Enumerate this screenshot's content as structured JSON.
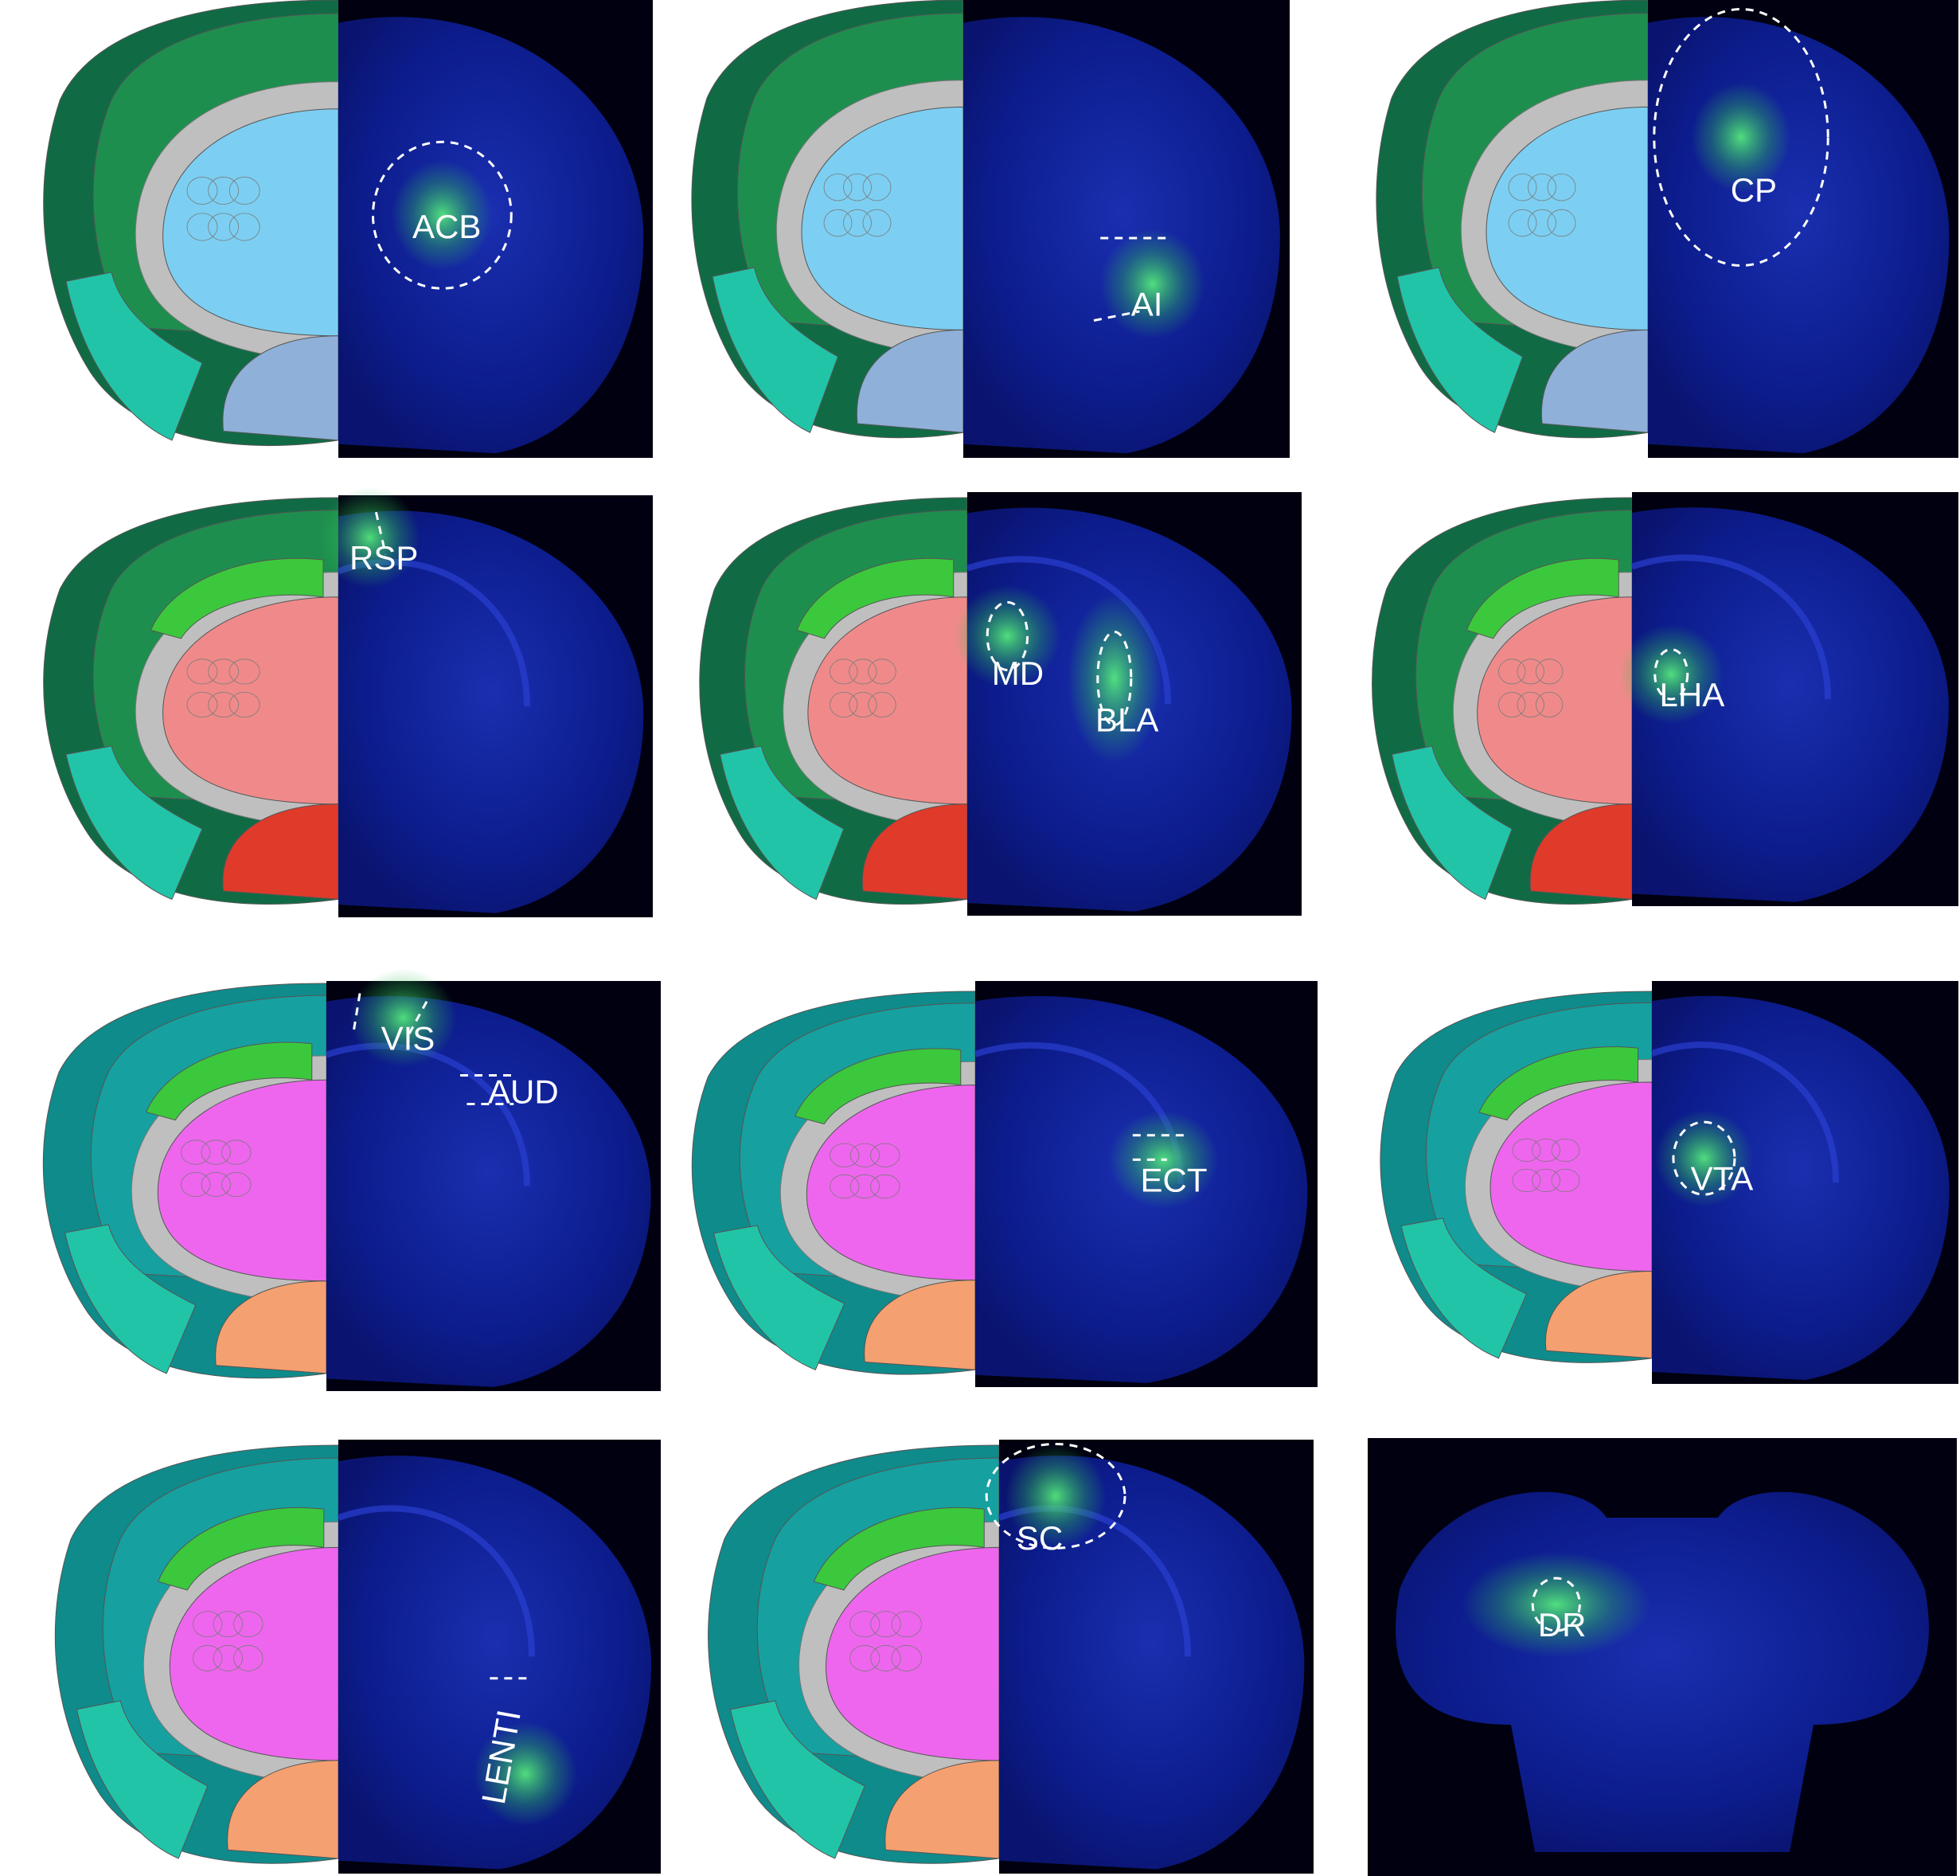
{
  "colors": {
    "background": "#ffffff",
    "fluorescence_bg": "#000010",
    "tissue_blue": "#0a1a8a",
    "signal_green": "#3ee86a",
    "cortex_green": "#1e8e4e",
    "cortex_dark": "#106b45",
    "teal_cortex": "#0f8b8b",
    "striatum_blue": "#7ccff2",
    "thalamus_red": "#f08a8a",
    "hypothalamus_red": "#e03a2a",
    "midbrain_pink": "#ee66ee",
    "hippocampus_green": "#3cc83c",
    "fiber_gray": "#bfbfbf"
  },
  "panels": [
    {
      "label": "ACB",
      "icon": "coronal-section-image"
    },
    {
      "label": "AI",
      "icon": "coronal-section-image"
    },
    {
      "label": "CP",
      "icon": "coronal-section-image"
    },
    {
      "label": "RSP",
      "icon": "coronal-section-image"
    },
    {
      "label": "MD",
      "label2": "BLA",
      "icon": "coronal-section-image"
    },
    {
      "label": "LHA",
      "icon": "coronal-section-image"
    },
    {
      "label": "VIS",
      "label2": "AUD",
      "icon": "coronal-section-image"
    },
    {
      "label": "ECT",
      "icon": "coronal-section-image"
    },
    {
      "label": "VTA",
      "icon": "coronal-section-image"
    },
    {
      "label": "LENTI",
      "icon": "coronal-section-image"
    },
    {
      "label": "SC",
      "icon": "coronal-section-image"
    },
    {
      "label": "DR",
      "icon": "coronal-section-image"
    }
  ]
}
